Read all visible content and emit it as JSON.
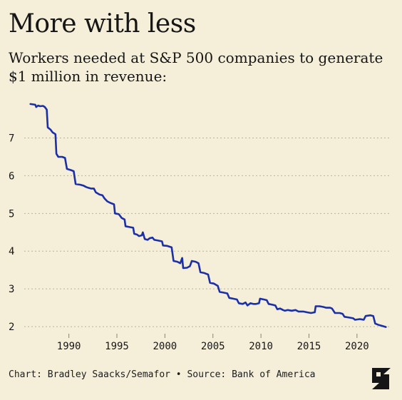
{
  "header": {
    "title": "More with less",
    "subtitle": "Workers needed at S&P 500 companies to generate $1 million in revenue:"
  },
  "footer": {
    "credit": "Chart: Bradley Saacks/Semafor • Source: Bank of America"
  },
  "logo": {
    "icon": "semafor-logo-icon",
    "text": "S"
  },
  "colors": {
    "background": "#f5efd9",
    "line": "#1b2fa8",
    "grid": "#b9b39e",
    "text": "#161616"
  },
  "chart_data": {
    "type": "line",
    "title": "Workers needed at S&P 500 companies to generate $1 million in revenue:",
    "xlabel": "",
    "ylabel": "",
    "xlim": [
      1985.5,
      2023.5
    ],
    "ylim": [
      1.85,
      8.2
    ],
    "x_ticks": [
      1990,
      1995,
      2000,
      2005,
      2010,
      2015,
      2020
    ],
    "y_ticks": [
      2,
      3,
      4,
      5,
      6,
      7
    ],
    "grid": "horizontal dotted",
    "legend": "none",
    "series": [
      {
        "color": "#1b2fa8",
        "points": [
          [
            1986.0,
            7.9
          ],
          [
            1986.5,
            7.88
          ],
          [
            1986.6,
            7.82
          ],
          [
            1986.8,
            7.86
          ],
          [
            1987.0,
            7.84
          ],
          [
            1987.3,
            7.85
          ],
          [
            1987.5,
            7.82
          ],
          [
            1987.7,
            7.75
          ],
          [
            1987.8,
            7.28
          ],
          [
            1988.1,
            7.22
          ],
          [
            1988.3,
            7.15
          ],
          [
            1988.6,
            7.1
          ],
          [
            1988.7,
            6.58
          ],
          [
            1988.9,
            6.5
          ],
          [
            1989.3,
            6.5
          ],
          [
            1989.6,
            6.47
          ],
          [
            1989.8,
            6.18
          ],
          [
            1990.2,
            6.15
          ],
          [
            1990.5,
            6.12
          ],
          [
            1990.7,
            5.78
          ],
          [
            1991.2,
            5.76
          ],
          [
            1991.5,
            5.74
          ],
          [
            1991.8,
            5.7
          ],
          [
            1992.0,
            5.68
          ],
          [
            1992.3,
            5.66
          ],
          [
            1992.6,
            5.66
          ],
          [
            1992.8,
            5.56
          ],
          [
            1993.2,
            5.5
          ],
          [
            1993.5,
            5.48
          ],
          [
            1993.7,
            5.4
          ],
          [
            1994.0,
            5.32
          ],
          [
            1994.3,
            5.28
          ],
          [
            1994.7,
            5.24
          ],
          [
            1994.8,
            5.0
          ],
          [
            1995.2,
            4.98
          ],
          [
            1995.5,
            4.88
          ],
          [
            1995.8,
            4.84
          ],
          [
            1995.9,
            4.66
          ],
          [
            1996.3,
            4.64
          ],
          [
            1996.7,
            4.62
          ],
          [
            1996.8,
            4.46
          ],
          [
            1997.1,
            4.44
          ],
          [
            1997.3,
            4.4
          ],
          [
            1997.6,
            4.42
          ],
          [
            1997.7,
            4.5
          ],
          [
            1997.9,
            4.32
          ],
          [
            1998.2,
            4.3
          ],
          [
            1998.4,
            4.34
          ],
          [
            1998.7,
            4.36
          ],
          [
            1998.9,
            4.3
          ],
          [
            1999.3,
            4.28
          ],
          [
            1999.7,
            4.26
          ],
          [
            1999.8,
            4.15
          ],
          [
            2000.2,
            4.14
          ],
          [
            2000.7,
            4.1
          ],
          [
            2000.9,
            3.74
          ],
          [
            2001.3,
            3.72
          ],
          [
            2001.6,
            3.68
          ],
          [
            2001.8,
            3.82
          ],
          [
            2001.9,
            3.55
          ],
          [
            2002.3,
            3.56
          ],
          [
            2002.6,
            3.6
          ],
          [
            2002.8,
            3.74
          ],
          [
            2003.2,
            3.72
          ],
          [
            2003.5,
            3.68
          ],
          [
            2003.7,
            3.44
          ],
          [
            2004.1,
            3.42
          ],
          [
            2004.5,
            3.38
          ],
          [
            2004.7,
            3.16
          ],
          [
            2005.1,
            3.14
          ],
          [
            2005.5,
            3.08
          ],
          [
            2005.7,
            2.92
          ],
          [
            2006.1,
            2.9
          ],
          [
            2006.5,
            2.88
          ],
          [
            2006.7,
            2.76
          ],
          [
            2007.1,
            2.74
          ],
          [
            2007.5,
            2.72
          ],
          [
            2007.7,
            2.62
          ],
          [
            2008.1,
            2.6
          ],
          [
            2008.4,
            2.64
          ],
          [
            2008.6,
            2.56
          ],
          [
            2008.9,
            2.62
          ],
          [
            2009.2,
            2.6
          ],
          [
            2009.5,
            2.6
          ],
          [
            2009.8,
            2.62
          ],
          [
            2009.9,
            2.74
          ],
          [
            2010.3,
            2.72
          ],
          [
            2010.6,
            2.7
          ],
          [
            2010.8,
            2.6
          ],
          [
            2011.2,
            2.58
          ],
          [
            2011.5,
            2.56
          ],
          [
            2011.7,
            2.46
          ],
          [
            2012.0,
            2.48
          ],
          [
            2012.3,
            2.44
          ],
          [
            2012.5,
            2.42
          ],
          [
            2012.8,
            2.44
          ],
          [
            2013.2,
            2.42
          ],
          [
            2013.6,
            2.44
          ],
          [
            2013.9,
            2.4
          ],
          [
            2014.4,
            2.4
          ],
          [
            2014.8,
            2.38
          ],
          [
            2015.2,
            2.36
          ],
          [
            2015.6,
            2.38
          ],
          [
            2015.7,
            2.54
          ],
          [
            2016.1,
            2.54
          ],
          [
            2016.5,
            2.52
          ],
          [
            2016.8,
            2.5
          ],
          [
            2017.2,
            2.5
          ],
          [
            2017.4,
            2.48
          ],
          [
            2017.7,
            2.36
          ],
          [
            2018.2,
            2.36
          ],
          [
            2018.5,
            2.34
          ],
          [
            2018.7,
            2.26
          ],
          [
            2019.2,
            2.24
          ],
          [
            2019.6,
            2.22
          ],
          [
            2019.8,
            2.18
          ],
          [
            2020.3,
            2.2
          ],
          [
            2020.7,
            2.18
          ],
          [
            2020.9,
            2.28
          ],
          [
            2021.4,
            2.3
          ],
          [
            2021.7,
            2.28
          ],
          [
            2021.9,
            2.08
          ],
          [
            2022.3,
            2.04
          ],
          [
            2022.6,
            2.02
          ],
          [
            2023.0,
            1.99
          ]
        ]
      }
    ]
  }
}
